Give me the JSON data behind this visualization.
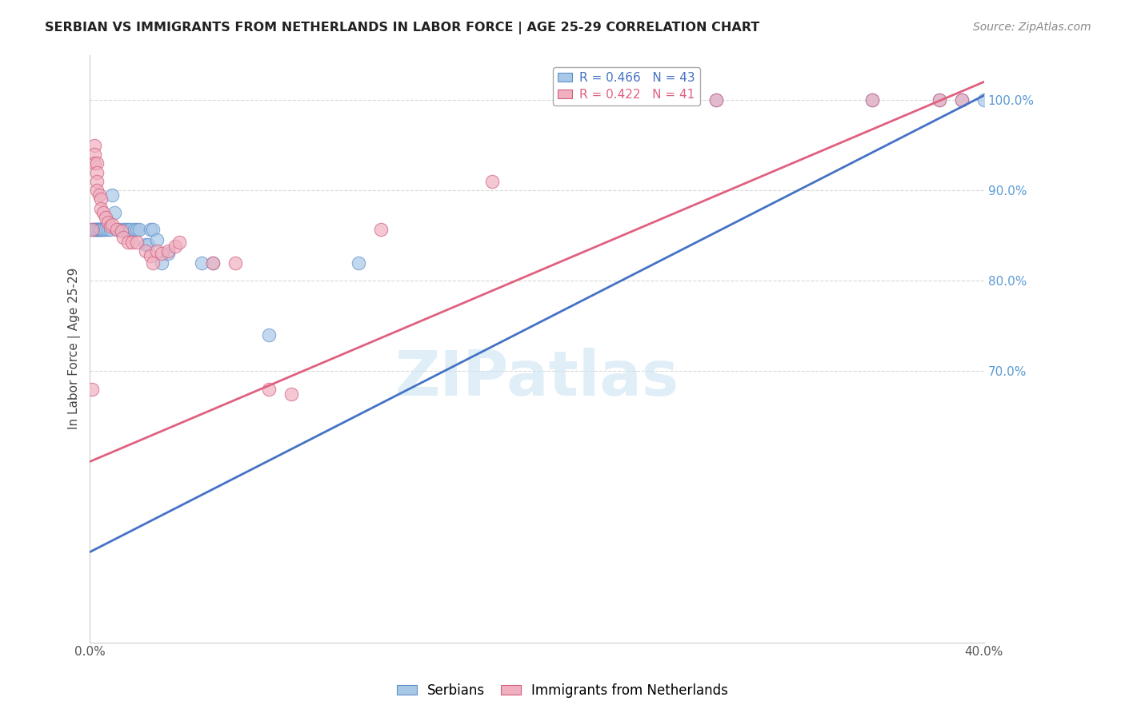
{
  "title": "SERBIAN VS IMMIGRANTS FROM NETHERLANDS IN LABOR FORCE | AGE 25-29 CORRELATION CHART",
  "source": "Source: ZipAtlas.com",
  "ylabel": "In Labor Force | Age 25-29",
  "xlim": [
    0.0,
    0.4
  ],
  "ylim": [
    0.4,
    1.05
  ],
  "xticks": [
    0.0,
    0.05,
    0.1,
    0.15,
    0.2,
    0.25,
    0.3,
    0.35,
    0.4
  ],
  "xticklabels": [
    "0.0%",
    "",
    "",
    "",
    "",
    "",
    "",
    "",
    "40.0%"
  ],
  "yticks_right": [
    0.7,
    0.8,
    0.9,
    1.0
  ],
  "ytick_labels_right": [
    "70.0%",
    "80.0%",
    "90.0%",
    "100.0%"
  ],
  "right_tick_color": "#5b9bd5",
  "grid_color": "#d8d8d8",
  "background_color": "#ffffff",
  "blue_color": "#a8c8e8",
  "pink_color": "#f0b0c0",
  "blue_edge_color": "#6090c8",
  "pink_edge_color": "#d06080",
  "blue_line_color": "#4472c4",
  "pink_line_color": "#e06080",
  "legend_blue_label": "R = 0.466   N = 43",
  "legend_pink_label": "R = 0.422   N = 41",
  "legend_serbians": "Serbians",
  "legend_immigrants": "Immigrants from Netherlands",
  "watermark": "ZIPatlas",
  "blue_scatter_x": [
    0.001,
    0.002,
    0.002,
    0.003,
    0.003,
    0.003,
    0.003,
    0.004,
    0.004,
    0.005,
    0.005,
    0.006,
    0.006,
    0.007,
    0.008,
    0.009,
    0.01,
    0.011,
    0.012,
    0.013,
    0.015,
    0.016,
    0.017,
    0.018,
    0.02,
    0.021,
    0.022,
    0.025,
    0.026,
    0.027,
    0.028,
    0.03,
    0.032,
    0.035,
    0.05,
    0.055,
    0.08,
    0.12,
    0.28,
    0.35,
    0.38,
    0.39,
    0.4
  ],
  "blue_scatter_y": [
    0.857,
    0.857,
    0.857,
    0.857,
    0.857,
    0.857,
    0.857,
    0.857,
    0.857,
    0.857,
    0.857,
    0.857,
    0.857,
    0.857,
    0.857,
    0.857,
    0.895,
    0.875,
    0.857,
    0.857,
    0.857,
    0.857,
    0.857,
    0.857,
    0.857,
    0.857,
    0.857,
    0.84,
    0.84,
    0.857,
    0.857,
    0.845,
    0.82,
    0.83,
    0.82,
    0.82,
    0.74,
    0.82,
    1.0,
    1.0,
    1.0,
    1.0,
    1.0
  ],
  "pink_scatter_x": [
    0.001,
    0.001,
    0.002,
    0.002,
    0.002,
    0.003,
    0.003,
    0.003,
    0.003,
    0.004,
    0.005,
    0.005,
    0.006,
    0.007,
    0.008,
    0.009,
    0.01,
    0.012,
    0.014,
    0.015,
    0.017,
    0.019,
    0.021,
    0.025,
    0.027,
    0.028,
    0.03,
    0.032,
    0.035,
    0.038,
    0.04,
    0.055,
    0.065,
    0.08,
    0.09,
    0.13,
    0.18,
    0.28,
    0.35,
    0.38,
    0.39
  ],
  "pink_scatter_y": [
    0.857,
    0.68,
    0.95,
    0.94,
    0.93,
    0.93,
    0.92,
    0.91,
    0.9,
    0.895,
    0.89,
    0.88,
    0.875,
    0.87,
    0.865,
    0.86,
    0.862,
    0.857,
    0.855,
    0.848,
    0.843,
    0.843,
    0.843,
    0.833,
    0.828,
    0.82,
    0.833,
    0.83,
    0.833,
    0.838,
    0.843,
    0.82,
    0.82,
    0.68,
    0.675,
    0.857,
    0.91,
    1.0,
    1.0,
    1.0,
    1.0
  ],
  "blue_line_x0": 0.0,
  "blue_line_x1": 0.4,
  "blue_line_y0": 0.5,
  "blue_line_y1": 1.005,
  "pink_line_x0": 0.0,
  "pink_line_x1": 0.4,
  "pink_line_y0": 0.6,
  "pink_line_y1": 1.02
}
